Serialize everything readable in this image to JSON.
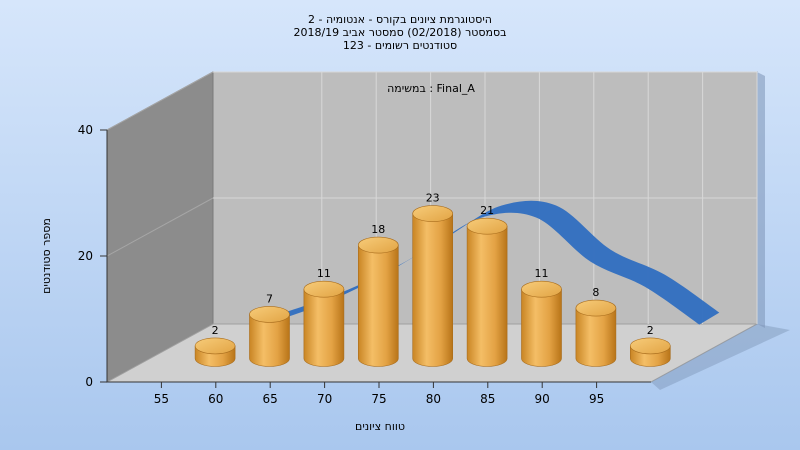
{
  "chart_data": {
    "type": "bar",
    "title_lines": [
      "היסטוגרמת ציונים בקורס - אנטומיה - 2",
      "בסמסטר  (02/2018)  סמסטר אביב 2018/19",
      "סטודנטים רשומים - 123"
    ],
    "subtitle": "במשימה : Final_A",
    "xlabel": "טווח ציונים",
    "ylabel": "מספר סטודנטים",
    "categories": [
      "55",
      "60",
      "65",
      "70",
      "75",
      "80",
      "85",
      "90",
      "95"
    ],
    "values": [
      2,
      7,
      11,
      18,
      23,
      21,
      11,
      8,
      2
    ],
    "yticks": [
      "0",
      "20",
      "40"
    ],
    "ylim": [
      0,
      40
    ],
    "curve": {
      "x": [
        60,
        65,
        70,
        75,
        80,
        85,
        90,
        95,
        100
      ],
      "y": [
        5,
        8,
        12,
        17,
        22,
        22,
        15,
        11,
        5
      ]
    },
    "colors": {
      "bar": "#e0a040",
      "curve": "#2f6ec0",
      "back_wall": "#bdbdbd",
      "side_wall": "#8c8c8c",
      "floor": "#d0d0d0"
    },
    "grid": true
  }
}
